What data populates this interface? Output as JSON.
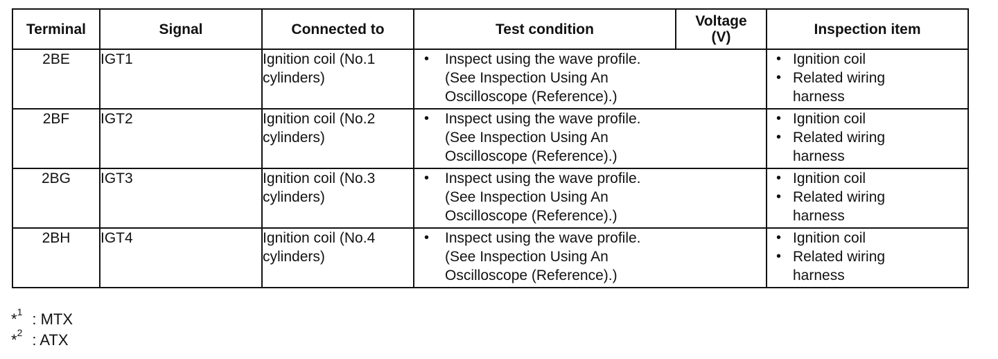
{
  "table": {
    "headers": {
      "terminal": "Terminal",
      "signal": "Signal",
      "connected_to": "Connected to",
      "test_condition": "Test condition",
      "voltage_line1": "Voltage",
      "voltage_line2": "(V)",
      "inspection_item": "Inspection item"
    },
    "rows": [
      {
        "terminal": "2BE",
        "signal": "IGT1",
        "connected_to": [
          "Ignition coil (No.1",
          "cylinders)"
        ],
        "test_condition": [
          "Inspect using the wave profile.",
          "(See Inspection Using An",
          "Oscilloscope (Reference).)"
        ],
        "inspection_items": [
          "Ignition coil",
          "Related wiring",
          "harness"
        ]
      },
      {
        "terminal": "2BF",
        "signal": "IGT2",
        "connected_to": [
          "Ignition coil (No.2",
          "cylinders)"
        ],
        "test_condition": [
          "Inspect using the wave profile.",
          "(See Inspection Using An",
          "Oscilloscope (Reference).)"
        ],
        "inspection_items": [
          "Ignition coil",
          "Related wiring",
          "harness"
        ]
      },
      {
        "terminal": "2BG",
        "signal": "IGT3",
        "connected_to": [
          "Ignition coil (No.3",
          "cylinders)"
        ],
        "test_condition": [
          "Inspect using the wave profile.",
          "(See Inspection Using An",
          "Oscilloscope (Reference).)"
        ],
        "inspection_items": [
          "Ignition coil",
          "Related wiring",
          "harness"
        ]
      },
      {
        "terminal": "2BH",
        "signal": "IGT4",
        "connected_to": [
          "Ignition coil (No.4",
          "cylinders)"
        ],
        "test_condition": [
          "Inspect using the wave profile.",
          "(See Inspection Using An",
          "Oscilloscope (Reference).)"
        ],
        "inspection_items": [
          "Ignition coil",
          "Related wiring",
          "harness"
        ]
      }
    ]
  },
  "footnotes": [
    {
      "marker": "*",
      "number": "1",
      "text": ": MTX"
    },
    {
      "marker": "*",
      "number": "2",
      "text": ": ATX"
    }
  ]
}
